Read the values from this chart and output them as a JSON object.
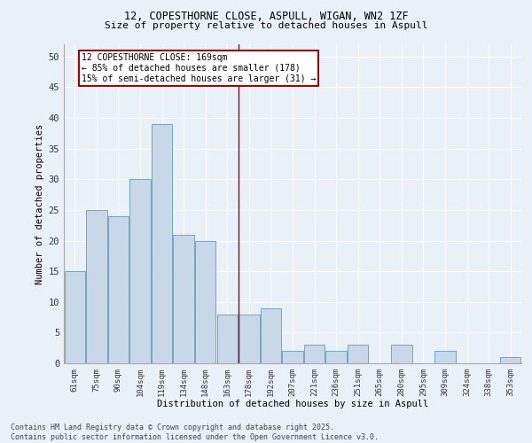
{
  "title_line1": "12, COPESTHORNE CLOSE, ASPULL, WIGAN, WN2 1ZF",
  "title_line2": "Size of property relative to detached houses in Aspull",
  "xlabel": "Distribution of detached houses by size in Aspull",
  "ylabel": "Number of detached properties",
  "categories": [
    "61sqm",
    "75sqm",
    "90sqm",
    "104sqm",
    "119sqm",
    "134sqm",
    "148sqm",
    "163sqm",
    "178sqm",
    "192sqm",
    "207sqm",
    "221sqm",
    "236sqm",
    "251sqm",
    "265sqm",
    "280sqm",
    "295sqm",
    "309sqm",
    "324sqm",
    "338sqm",
    "353sqm"
  ],
  "values": [
    15,
    25,
    24,
    30,
    39,
    21,
    20,
    8,
    8,
    9,
    2,
    3,
    2,
    3,
    0,
    3,
    0,
    2,
    0,
    0,
    1
  ],
  "bar_color": "#c8d8e8",
  "bar_edge_color": "#6699bb",
  "vline_x_index": 7.5,
  "vline_color": "#aa0000",
  "annotation_text": "12 COPESTHORNE CLOSE: 169sqm\n← 85% of detached houses are smaller (178)\n15% of semi-detached houses are larger (31) →",
  "annotation_box_color": "#aa0000",
  "annotation_text_color": "#000000",
  "ylim": [
    0,
    52
  ],
  "yticks": [
    0,
    5,
    10,
    15,
    20,
    25,
    30,
    35,
    40,
    45,
    50
  ],
  "background_color": "#e8f0f8",
  "grid_color": "#ffffff",
  "footer_line1": "Contains HM Land Registry data © Crown copyright and database right 2025.",
  "footer_line2": "Contains public sector information licensed under the Open Government Licence v3.0."
}
